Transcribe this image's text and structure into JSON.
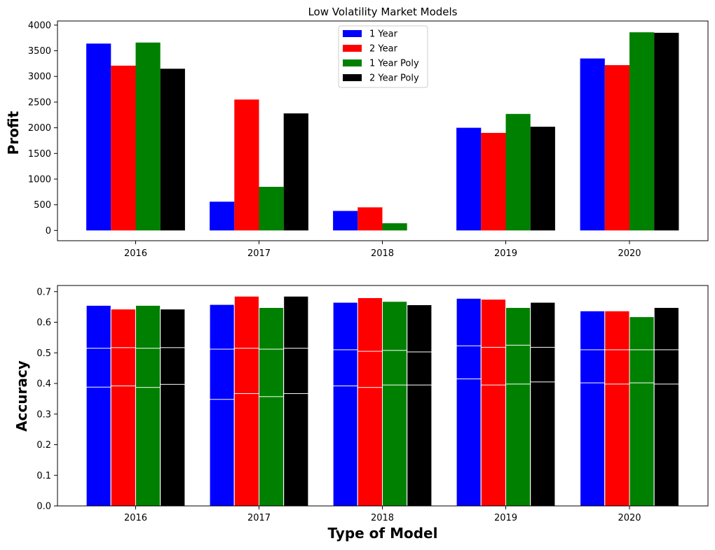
{
  "chart_data": [
    {
      "type": "bar",
      "title": "Low Volatility Market Models",
      "xlabel": "",
      "ylabel": "Profit",
      "ylim": [
        -200,
        4080
      ],
      "yticks": [
        0,
        500,
        1000,
        1500,
        2000,
        2500,
        3000,
        3500,
        4000
      ],
      "categories": [
        "2016",
        "2017",
        "2018",
        "2019",
        "2020"
      ],
      "grid": false,
      "legend_position": "top-center",
      "series": [
        {
          "name": "1 Year",
          "color": "#0000ff",
          "values": [
            3640,
            560,
            380,
            2000,
            3350
          ]
        },
        {
          "name": "2 Year",
          "color": "#ff0000",
          "values": [
            3210,
            2550,
            450,
            1900,
            3220
          ]
        },
        {
          "name": "1 Year Poly",
          "color": "#008000",
          "values": [
            3660,
            850,
            140,
            2270,
            3860
          ]
        },
        {
          "name": "2 Year Poly",
          "color": "#000000",
          "values": [
            3150,
            2280,
            0,
            2020,
            3850
          ]
        }
      ]
    },
    {
      "type": "bar",
      "title": "",
      "xlabel": "Type of Model",
      "ylabel": "Accuracy",
      "ylim": [
        0,
        0.72
      ],
      "yticks": [
        "0.0",
        "0.1",
        "0.2",
        "0.3",
        "0.4",
        "0.5",
        "0.6",
        "0.7"
      ],
      "categories": [
        "2016",
        "2017",
        "2018",
        "2019",
        "2020"
      ],
      "grid": false,
      "stacked_levels": true,
      "series": [
        {
          "name": "1 Year",
          "color": "#0000ff",
          "levels": [
            [
              0.388,
              0.515,
              0.655
            ],
            [
              0.348,
              0.512,
              0.658
            ],
            [
              0.392,
              0.51,
              0.665
            ],
            [
              0.415,
              0.523,
              0.678
            ],
            [
              0.402,
              0.51,
              0.637
            ]
          ]
        },
        {
          "name": "2 Year",
          "color": "#ff0000",
          "levels": [
            [
              0.392,
              0.517,
              0.643
            ],
            [
              0.367,
              0.515,
              0.685
            ],
            [
              0.387,
              0.505,
              0.68
            ],
            [
              0.395,
              0.518,
              0.675
            ],
            [
              0.398,
              0.51,
              0.637
            ]
          ]
        },
        {
          "name": "1 Year Poly",
          "color": "#008000",
          "levels": [
            [
              0.387,
              0.515,
              0.655
            ],
            [
              0.357,
              0.512,
              0.648
            ],
            [
              0.395,
              0.508,
              0.668
            ],
            [
              0.398,
              0.525,
              0.648
            ],
            [
              0.402,
              0.51,
              0.618
            ]
          ]
        },
        {
          "name": "2 Year Poly",
          "color": "#000000",
          "levels": [
            [
              0.397,
              0.517,
              0.643
            ],
            [
              0.367,
              0.515,
              0.685
            ],
            [
              0.395,
              0.503,
              0.657
            ],
            [
              0.405,
              0.518,
              0.665
            ],
            [
              0.398,
              0.51,
              0.648
            ]
          ]
        }
      ]
    }
  ]
}
